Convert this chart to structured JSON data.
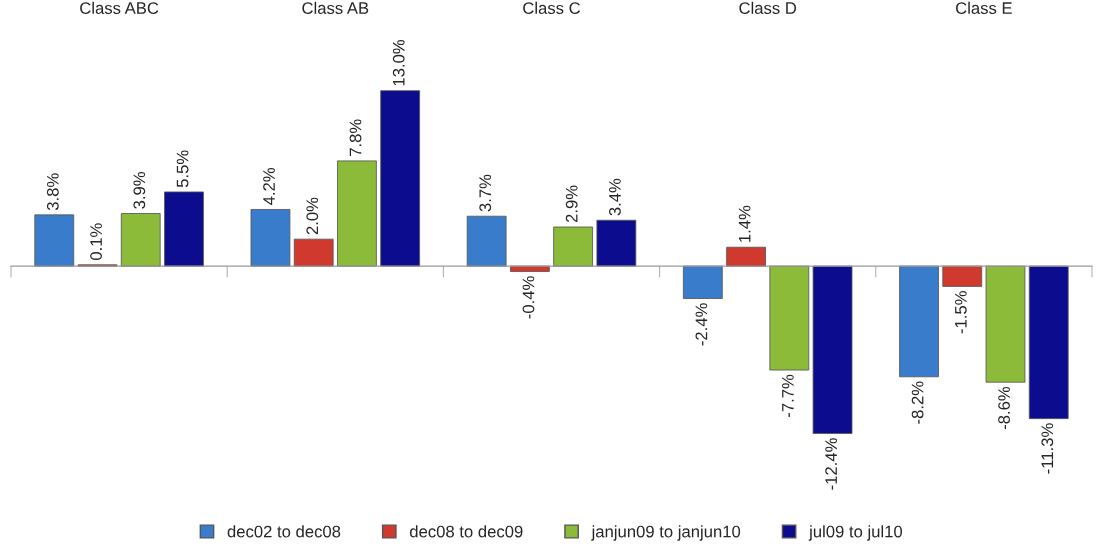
{
  "chart_data": {
    "type": "bar",
    "categories": [
      "Class ABC",
      "Class AB",
      "Class C",
      "Class D",
      "Class E"
    ],
    "series": [
      {
        "name": "dec02 to dec08",
        "color": "#3a7ccc",
        "values": [
          3.8,
          4.2,
          3.7,
          -2.4,
          -8.2
        ],
        "value_labels": [
          "3.8%",
          "4.2%",
          "3.7%",
          "-2.4%",
          "-8.2%"
        ]
      },
      {
        "name": "dec08 to dec09",
        "color": "#d0392e",
        "values": [
          0.1,
          2.0,
          -0.4,
          1.4,
          -1.5
        ],
        "value_labels": [
          "0.1%",
          "2.0%",
          "-0.4%",
          "1.4%",
          "-1.5%"
        ]
      },
      {
        "name": "janjun09 to janjun10",
        "color": "#8cbb3a",
        "values": [
          3.9,
          7.8,
          2.9,
          -7.7,
          -8.6
        ],
        "value_labels": [
          "3.9%",
          "7.8%",
          "2.9%",
          "-7.7%",
          "-8.6%"
        ]
      },
      {
        "name": "jul09 to jul10",
        "color": "#0c0c8e",
        "values": [
          5.5,
          13.0,
          3.4,
          -12.4,
          -11.3
        ],
        "value_labels": [
          "5.5%",
          "13.0%",
          "3.4%",
          "-12.4%",
          "-11.3%"
        ]
      }
    ],
    "legend": "bottom",
    "grid": false
  }
}
